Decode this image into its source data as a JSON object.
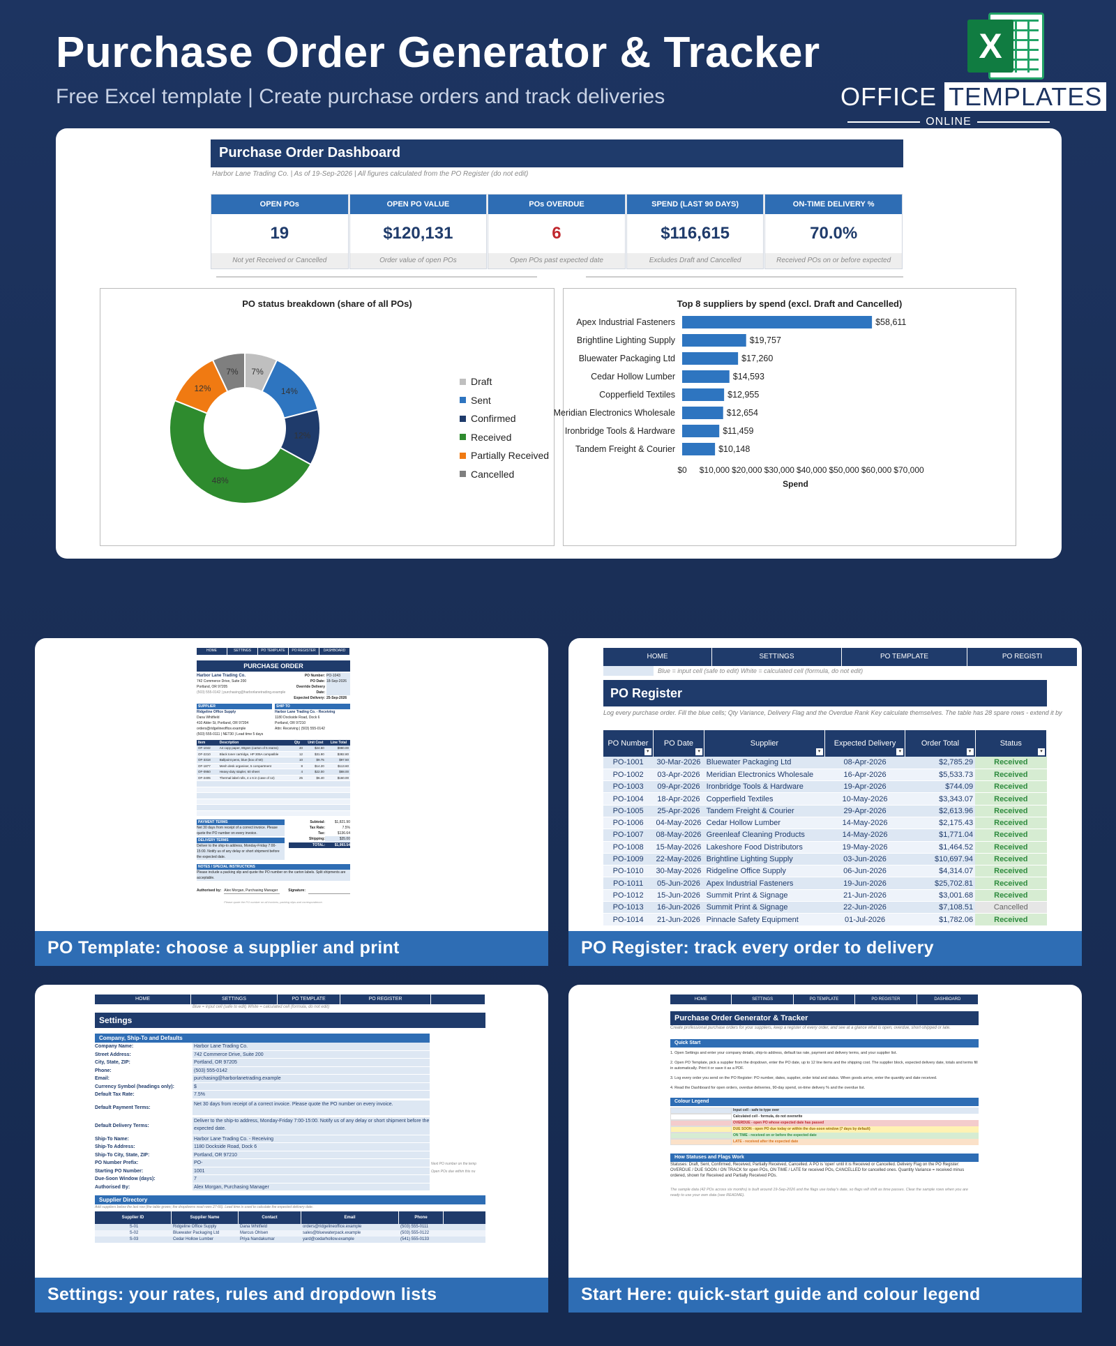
{
  "hero": {
    "title": "Purchase Order Generator & Tracker",
    "subtitle": "Free Excel template  |  Create purchase orders and track deliveries",
    "logo_letter": "X",
    "logo_office": "OFFICE",
    "logo_templates": "TEMPLATES",
    "logo_online": "ONLINE"
  },
  "dashboard": {
    "title": "Purchase Order Dashboard",
    "subtitle": "Harbor Lane Trading Co.  |  As of 19-Sep-2026  |  All figures calculated from the PO Register (do not edit)",
    "kpis": [
      {
        "label": "OPEN POs",
        "value": "19",
        "note": "Not yet Received or Cancelled"
      },
      {
        "label": "OPEN PO VALUE",
        "value": "$120,131",
        "note": "Order value of open POs"
      },
      {
        "label": "POs OVERDUE",
        "value": "6",
        "note": "Open POs past expected date"
      },
      {
        "label": "SPEND (LAST 90 DAYS)",
        "value": "$116,615",
        "note": "Excludes Draft and Cancelled"
      },
      {
        "label": "ON-TIME DELIVERY %",
        "value": "70.0%",
        "note": "Received POs on or before expected"
      }
    ]
  },
  "chart_data": [
    {
      "type": "pie",
      "title": "PO status breakdown (share of all POs)",
      "categories": [
        "Draft",
        "Sent",
        "Confirmed",
        "Received",
        "Partially Received",
        "Cancelled"
      ],
      "values": [
        7,
        14,
        12,
        48,
        12,
        7
      ],
      "labels": [
        "7%",
        "14%",
        "12%",
        "48%",
        "12%",
        "7%"
      ],
      "colors": [
        "#bfbfbf",
        "#2e75c0",
        "#1f3b6b",
        "#2e8b2e",
        "#f07a12",
        "#7f7f7f"
      ],
      "donut": true,
      "legend": "right"
    },
    {
      "type": "bar",
      "orientation": "horizontal",
      "title": "Top 8 suppliers by spend (excl. Draft and Cancelled)",
      "categories": [
        "Apex Industrial Fasteners",
        "Brightline Lighting Supply",
        "Bluewater Packaging Ltd",
        "Cedar Hollow Lumber",
        "Copperfield Textiles",
        "Meridian Electronics Wholesale",
        "Ironbridge Tools & Hardware",
        "Tandem Freight & Courier"
      ],
      "values": [
        58611,
        19757,
        17260,
        14593,
        12955,
        12654,
        11459,
        10148
      ],
      "value_labels": [
        "$58,611",
        "$19,757",
        "$17,260",
        "$14,593",
        "$12,955",
        "$12,654",
        "$11,459",
        "$10,148"
      ],
      "xlabel": "Spend",
      "xlim": [
        0,
        70000
      ],
      "xticks": [
        "$0",
        "$10,000",
        "$20,000",
        "$30,000",
        "$40,000",
        "$50,000",
        "$60,000",
        "$70,000"
      ],
      "color": "#2e75c0"
    }
  ],
  "captions": {
    "po_template": "PO Template: choose a supplier and print",
    "po_register": "PO Register: track every order to delivery",
    "settings": "Settings: your rates, rules and dropdown lists",
    "start_here": "Start Here: quick-start guide and colour legend"
  },
  "po_template": {
    "nav": [
      "HOME",
      "SETTINGS",
      "PO TEMPLATE",
      "PO REGISTER",
      "DASHBOARD"
    ],
    "title": "PURCHASE ORDER",
    "company": "Harbor Lane Trading Co.",
    "address": [
      "742 Commerce Drive, Suite 200",
      "Portland, OR 97205"
    ],
    "contact": "(503) 555-0142  |  purchasing@harborlanetrading.example",
    "fields": [
      {
        "k": "PO Number:",
        "v": "PO-1043"
      },
      {
        "k": "PO Date:",
        "v": "18-Sep-2026"
      },
      {
        "k": "Override Delivery Date:",
        "v": ""
      },
      {
        "k": "Expected Delivery:",
        "v": "25-Sep-2026"
      }
    ],
    "supplier_h": "SUPPLIER",
    "shipto_h": "SHIP TO",
    "supplier_name": "Ridgeline Office Supply",
    "supplier_lines": [
      "Dana Whitfield",
      "410 Alder St, Portland, OR 97204",
      "orders@ridgelineoffice.example",
      "(503) 555-0111  |  NET30  |  Lead time 5 days"
    ],
    "shipto_name": "Harbor Lane Trading Co. - Receiving",
    "shipto_lines": [
      "1180 Dockside Road, Dock 6",
      "Portland, OR 97210",
      "Attn: Receiving  |  (503) 555-0142"
    ],
    "item_headers": [
      "Item",
      "Description",
      "Qty",
      "Unit Cost",
      "Line Total"
    ],
    "items": [
      [
        "OF-1042",
        "A4 copy paper, 80gsm (carton of 5 reams)",
        "40",
        "$24.50",
        "$980.00"
      ],
      [
        "OF-2210",
        "Black toner cartridge, HP 305A compatible",
        "12",
        "$31.90",
        "$382.80"
      ],
      [
        "OF-3318",
        "Ballpoint pens, blue (box of 50)",
        "10",
        "$9.75",
        "$97.50"
      ],
      [
        "OF-1877",
        "Mesh desk organiser, 5 compartment",
        "8",
        "$14.20",
        "$113.60"
      ],
      [
        "OF-0950",
        "Heavy-duty stapler, 60 sheet",
        "4",
        "$22.00",
        "$88.00"
      ],
      [
        "OF-2405",
        "Thermal label rolls, 4 x 6 in (case of 12)",
        "25",
        "$6.40",
        "$160.00"
      ]
    ],
    "payment_h": "PAYMENT TERMS",
    "payment": "Net 30 days from receipt of a correct invoice. Please quote the PO number on every invoice.",
    "delivery_h": "DELIVERY TERMS",
    "delivery": "Deliver to the ship-to address, Monday-Friday 7:00-15:00. Notify us of any delay or short shipment before the expected date.",
    "totals": [
      {
        "k": "Subtotal:",
        "v": "$1,821.90"
      },
      {
        "k": "Tax Rate:",
        "v": "7.5%"
      },
      {
        "k": "Tax:",
        "v": "$136.64"
      },
      {
        "k": "Shipping:",
        "v": "$35.00"
      }
    ],
    "total_k": "TOTAL:",
    "total_v": "$1,993.54",
    "notes_h": "NOTES / SPECIAL INSTRUCTIONS",
    "notes": "Please include a packing slip and quote the PO number on the carton labels. Split shipments are acceptable.",
    "authorised_k": "Authorised by:",
    "authorised_v": "Alex Morgan, Purchasing Manager",
    "signature_k": "Signature:",
    "footer": "Please quote the PO number on all invoices, packing slips and correspondence."
  },
  "po_register": {
    "nav": [
      "HOME",
      "SETTINGS",
      "PO TEMPLATE",
      "PO REGISTI"
    ],
    "legend": "Blue = input cell (safe to edit)     White = calculated cell (formula, do not edit)",
    "title": "PO Register",
    "note": "Log every purchase order. Fill the blue cells; Qty Variance, Delivery Flag and the Overdue Rank Key calculate themselves. The table has 28 spare rows - extend it by",
    "headers": [
      "PO Number",
      "PO Date",
      "Supplier",
      "Expected Delivery",
      "Order Total",
      "Status"
    ],
    "rows": [
      [
        "PO-1001",
        "30-Mar-2026",
        "Bluewater Packaging Ltd",
        "08-Apr-2026",
        "$2,785.29",
        "Received"
      ],
      [
        "PO-1002",
        "03-Apr-2026",
        "Meridian Electronics Wholesale",
        "16-Apr-2026",
        "$5,533.73",
        "Received"
      ],
      [
        "PO-1003",
        "09-Apr-2026",
        "Ironbridge Tools & Hardware",
        "19-Apr-2026",
        "$744.09",
        "Received"
      ],
      [
        "PO-1004",
        "18-Apr-2026",
        "Copperfield Textiles",
        "10-May-2026",
        "$3,343.07",
        "Received"
      ],
      [
        "PO-1005",
        "25-Apr-2026",
        "Tandem Freight & Courier",
        "29-Apr-2026",
        "$2,613.96",
        "Received"
      ],
      [
        "PO-1006",
        "04-May-2026",
        "Cedar Hollow Lumber",
        "14-May-2026",
        "$2,175.43",
        "Received"
      ],
      [
        "PO-1007",
        "08-May-2026",
        "Greenleaf Cleaning Products",
        "14-May-2026",
        "$1,771.04",
        "Received"
      ],
      [
        "PO-1008",
        "15-May-2026",
        "Lakeshore Food Distributors",
        "19-May-2026",
        "$1,464.52",
        "Received"
      ],
      [
        "PO-1009",
        "22-May-2026",
        "Brightline Lighting Supply",
        "03-Jun-2026",
        "$10,697.94",
        "Received"
      ],
      [
        "PO-1010",
        "30-May-2026",
        "Ridgeline Office Supply",
        "06-Jun-2026",
        "$4,314.07",
        "Received"
      ],
      [
        "PO-1011",
        "05-Jun-2026",
        "Apex Industrial Fasteners",
        "19-Jun-2026",
        "$25,702.81",
        "Received"
      ],
      [
        "PO-1012",
        "15-Jun-2026",
        "Summit Print & Signage",
        "21-Jun-2026",
        "$3,001.68",
        "Received"
      ],
      [
        "PO-1013",
        "16-Jun-2026",
        "Summit Print & Signage",
        "22-Jun-2026",
        "$7,108.51",
        "Cancelled"
      ],
      [
        "PO-1014",
        "21-Jun-2026",
        "Pinnacle Safety Equipment",
        "01-Jul-2026",
        "$1,782.06",
        "Received"
      ]
    ]
  },
  "settings": {
    "nav": [
      "HOME",
      "SETTINGS",
      "PO TEMPLATE",
      "PO REGISTER",
      ""
    ],
    "legend": "Blue = input cell (safe to edit)     White = calculated cell (formula, do not edit)",
    "title": "Settings",
    "section1": "Company, Ship-To and Defaults",
    "rows": [
      {
        "k": "Company Name:",
        "v": "Harbor Lane Trading Co."
      },
      {
        "k": "Street Address:",
        "v": "742 Commerce Drive, Suite 200"
      },
      {
        "k": "City, State, ZIP:",
        "v": "Portland, OR 97205"
      },
      {
        "k": "Phone:",
        "v": "(503) 555-0142"
      },
      {
        "k": "Email:",
        "v": "purchasing@harborlanetrading.example"
      },
      {
        "k": "Currency Symbol (headings only):",
        "v": "$"
      },
      {
        "k": "Default Tax Rate:",
        "v": "7.5%"
      },
      {
        "k": "Default Payment Terms:",
        "v": "Net 30 days from receipt of a correct invoice. Please quote the PO number on every invoice."
      },
      {
        "k": "Default Delivery Terms:",
        "v": "Deliver to the ship-to address, Monday-Friday 7:00-15:00. Notify us of any delay or short shipment before the expected date."
      },
      {
        "k": "Ship-To Name:",
        "v": "Harbor Lane Trading Co. - Receiving"
      },
      {
        "k": "Ship-To Address:",
        "v": "1180 Dockside Road, Dock 6"
      },
      {
        "k": "Ship-To City, State, ZIP:",
        "v": "Portland, OR 97210"
      },
      {
        "k": "PO Number Prefix:",
        "v": "PO-"
      },
      {
        "k": "Starting PO Number:",
        "v": "1001"
      },
      {
        "k": "Due-Soon Window (days):",
        "v": "7"
      },
      {
        "k": "Authorised By:",
        "v": "Alex Morgan, Purchasing Manager"
      }
    ],
    "side_notes": [
      "Next PO number on the temp",
      "Open POs due within this nu"
    ],
    "section2": "Supplier Directory",
    "dir_note": "Add suppliers below the last row (the table grows; the dropdowns read rows 27-66). Lead time is used to calculate the expected delivery date.",
    "dir_headers": [
      "Supplier ID",
      "Supplier Name",
      "Contact",
      "Email",
      "Phone"
    ],
    "dir_rows": [
      [
        "S-01",
        "Ridgeline Office Supply",
        "Dana Whitfield",
        "orders@ridgelineoffice.example",
        "(503) 555-0111"
      ],
      [
        "S-02",
        "Bluewater Packaging Ltd",
        "Marcus Ohlsen",
        "sales@bluewaterpack.example",
        "(503) 555-0122"
      ],
      [
        "S-03",
        "Cedar Hollow Lumber",
        "Priya Nandakumar",
        "yard@cedarhollow.example",
        "(541) 555-0133"
      ]
    ]
  },
  "start_here": {
    "nav": [
      "HOME",
      "SETTINGS",
      "PO TEMPLATE",
      "PO REGISTER",
      "DASHBOARD"
    ],
    "title": "Purchase Order Generator & Tracker",
    "intro": "Create professional purchase orders for your suppliers, keep a register of every order, and see at a glance what is open, overdue, short-shipped or late.",
    "quick_h": "Quick Start",
    "steps": [
      "1.  Open Settings and enter your company details, ship-to address, default tax rate, payment and delivery terms, and your supplier list.",
      "2.  Open PO Template, pick a supplier from the dropdown, enter the PO date, up to 12 line items and the shipping cost. The supplier block, expected delivery date, totals and terms fill in automatically. Print it or save it as a PDF.",
      "3.  Log every order you send on the PO Register: PO number, dates, supplier, order total and status. When goods arrive, enter the quantity and date received.",
      "4.  Read the Dashboard for open orders, overdue deliveries, 90-day spend, on-time delivery % and the overdue list."
    ],
    "legend_h": "Colour Legend",
    "legend_rows": [
      {
        "label": "Input cell - safe to type over",
        "color": "#dde7f3",
        "text": "#333"
      },
      {
        "label": "Calculated cell - formula, do not overwrite",
        "color": "#ffffff",
        "text": "#333"
      },
      {
        "label": "OVERDUE - open PO whose expected date has passed",
        "color": "#f4cccc",
        "text": "#c0272d"
      },
      {
        "label": "DUE SOON - open PO due today or within the due-soon window (7 days by default)",
        "color": "#fff2b3",
        "text": "#9a6a00"
      },
      {
        "label": "ON TIME - received on or before the expected date",
        "color": "#d6ecd2",
        "text": "#2e8b3e"
      },
      {
        "label": "LATE - received after the expected date",
        "color": "#fbe1c8",
        "text": "#d9731a"
      }
    ],
    "status_h": "How Statuses and Flags Work",
    "status_text": "Statuses: Draft, Sent, Confirmed, Received, Partially Received, Cancelled. A PO is 'open' until it is Received or Cancelled. Delivery Flag on the PO Register: OVERDUE / DUE SOON / ON TRACK for open POs, ON TIME / LATE for received POs, CANCELLED for cancelled ones. Quantity Variance = received minus ordered, shown for Received and Partially Received POs.",
    "footer": "The sample data (42 POs across six months) is built around 19-Sep-2026 and the flags use today's date, so flags will shift as time passes. Clear the sample rows when you are ready to use your own data (see README)."
  }
}
